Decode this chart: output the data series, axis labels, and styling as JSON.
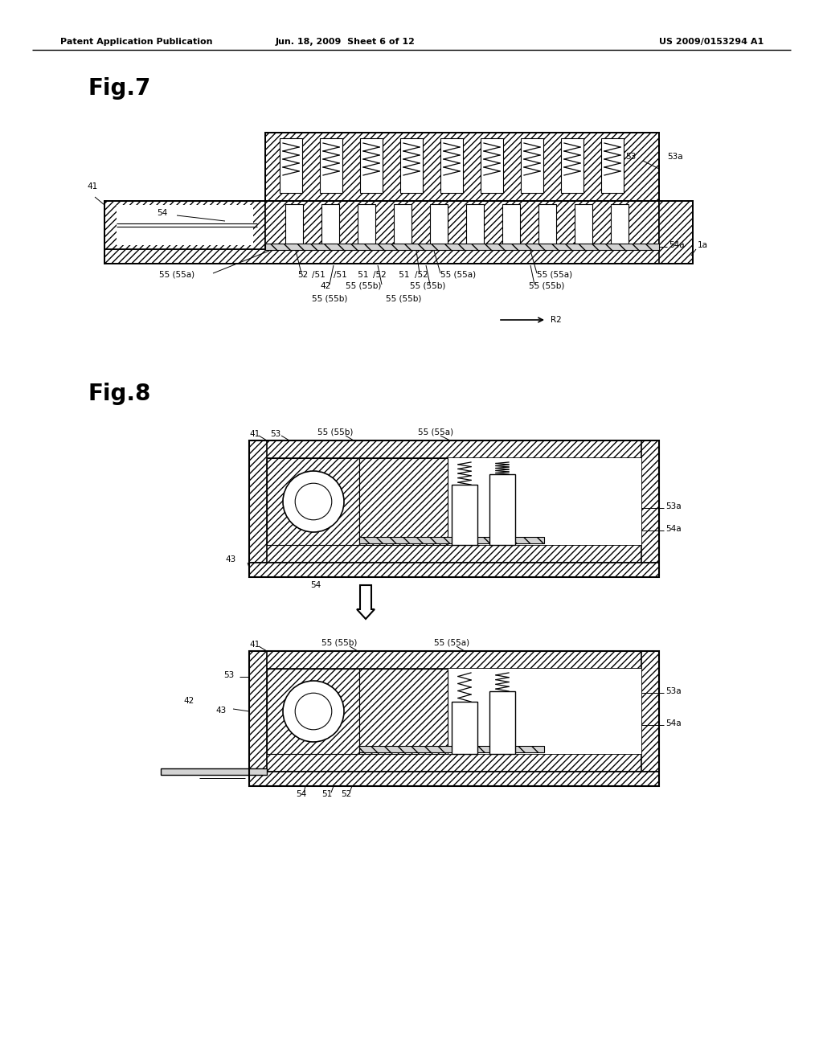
{
  "bg_color": "#ffffff",
  "header_left": "Patent Application Publication",
  "header_center": "Jun. 18, 2009  Sheet 6 of 12",
  "header_right": "US 2009/0153294 A1",
  "fig7_title": "Fig.7",
  "fig8_title": "Fig.8"
}
